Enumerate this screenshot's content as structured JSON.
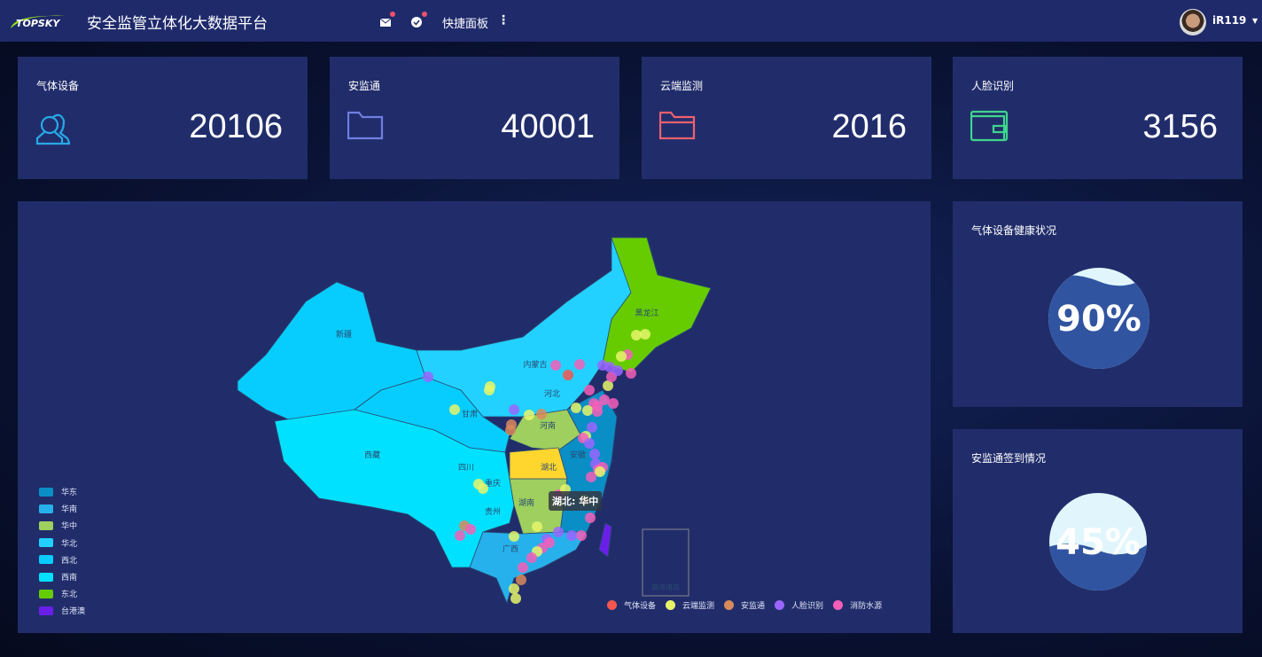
{
  "header": {
    "logo_text": "TOPSKY",
    "title": "安全监管立体化大数据平台",
    "quick_panel": "快捷面板",
    "username": "iR119",
    "icons": [
      "mail-icon",
      "check-circle-icon",
      "more-vertical-icon",
      "caret-down-icon"
    ]
  },
  "cards": [
    {
      "label": "气体设备",
      "value": "20106",
      "icon": "users-icon",
      "color": "#29a8e6"
    },
    {
      "label": "安监通",
      "value": "40001",
      "icon": "folder-icon",
      "color": "#6f7fe0"
    },
    {
      "label": "云端监测",
      "value": "2016",
      "icon": "folder-open-icon",
      "color": "#f0606e"
    },
    {
      "label": "人脸识别",
      "value": "3156",
      "icon": "wallet-icon",
      "color": "#3fd68c"
    }
  ],
  "map": {
    "regions": [
      {
        "name": "华东",
        "color": "#0a8ec6"
      },
      {
        "name": "华南",
        "color": "#27b1ec"
      },
      {
        "name": "华中",
        "color": "#9ecf5f"
      },
      {
        "name": "华北",
        "color": "#22d1ff"
      },
      {
        "name": "西北",
        "color": "#06cdfd"
      },
      {
        "name": "西南",
        "color": "#00e1ff"
      },
      {
        "name": "东北",
        "color": "#66cc00"
      },
      {
        "name": "台港澳",
        "color": "#6a1fe9"
      }
    ],
    "series": [
      {
        "name": "气体设备",
        "color": "#f5564e"
      },
      {
        "name": "云端监测",
        "color": "#e6f46a"
      },
      {
        "name": "安监通",
        "color": "#d98a5a"
      },
      {
        "name": "人脸识别",
        "color": "#9a66ff"
      },
      {
        "name": "消防水源",
        "color": "#f55fb8"
      }
    ],
    "province_labels": [
      "新疆",
      "西藏",
      "内蒙古",
      "黑龙江",
      "甘肃",
      "四川",
      "贵州",
      "湖北",
      "湖南",
      "河南",
      "河北",
      "安徽",
      "重庆",
      "广西"
    ],
    "inset_label": "南海诸岛",
    "tooltip": "湖北: 华中",
    "highlight_color": "#ffd62e"
  },
  "gauges": [
    {
      "title": "气体设备健康状况",
      "value": 90,
      "label": "90%"
    },
    {
      "title": "安监通签到情况",
      "value": 45,
      "label": "45%"
    }
  ]
}
